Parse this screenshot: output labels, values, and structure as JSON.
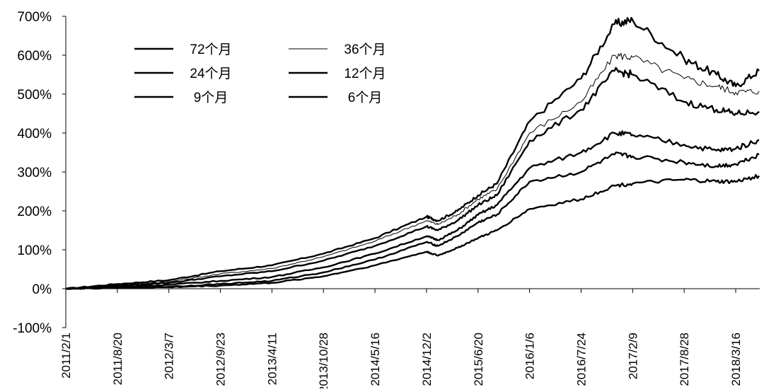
{
  "chart_data": {
    "type": "line",
    "title": "",
    "xlabel": "",
    "ylabel": "",
    "ylim": [
      -100,
      700
    ],
    "y_tick_labels": [
      "700%",
      "600%",
      "500%",
      "400%",
      "300%",
      "200%",
      "100%",
      "0%",
      "-100%"
    ],
    "y_ticks": [
      700,
      600,
      500,
      400,
      300,
      200,
      100,
      0,
      -100
    ],
    "x_tick_labels": [
      "2011/2/1",
      "2011/8/20",
      "2012/3/7",
      "2012/9/23",
      "2013/4/11",
      "2013/10/28",
      "2014/5/16",
      "2014/12/2",
      "2015/6/20",
      "2016/1/6",
      "2016/7/24",
      "2017/2/9",
      "2017/8/28",
      "2018/3/16"
    ],
    "xlim": [
      "2011/2/1",
      "2018/6/30"
    ],
    "grid": false,
    "legend": "top-left, two columns",
    "x": [
      "2011/2/1",
      "2011/8/20",
      "2012/3/7",
      "2012/9/23",
      "2013/4/11",
      "2013/10/28",
      "2014/5/16",
      "2014/12/2",
      "2015/1/15",
      "2015/4/1",
      "2015/6/20",
      "2015/9/1",
      "2016/1/6",
      "2016/7/24",
      "2016/12/1",
      "2017/2/9",
      "2017/8/28",
      "2018/1/1",
      "2018/3/16",
      "2018/6/15"
    ],
    "series": [
      {
        "name": "72个月",
        "values": [
          0,
          12,
          22,
          45,
          60,
          90,
          130,
          185,
          175,
          200,
          240,
          270,
          430,
          540,
          680,
          690,
          590,
          550,
          520,
          560
        ]
      },
      {
        "name": "36个月",
        "values": [
          0,
          10,
          18,
          38,
          52,
          82,
          122,
          175,
          165,
          190,
          230,
          255,
          400,
          480,
          600,
          595,
          540,
          520,
          505,
          508
        ]
      },
      {
        "name": "24个月",
        "values": [
          0,
          8,
          15,
          32,
          45,
          72,
          110,
          160,
          150,
          175,
          215,
          240,
          380,
          460,
          560,
          550,
          480,
          460,
          450,
          455
        ]
      },
      {
        "name": "12个月",
        "values": [
          0,
          5,
          10,
          20,
          30,
          55,
          90,
          135,
          125,
          150,
          190,
          215,
          310,
          350,
          400,
          395,
          370,
          355,
          360,
          382
        ]
      },
      {
        "name": "9个月",
        "values": [
          0,
          3,
          5,
          12,
          20,
          42,
          75,
          120,
          110,
          135,
          170,
          190,
          275,
          300,
          345,
          340,
          325,
          315,
          320,
          345
        ]
      },
      {
        "name": "6个月",
        "values": [
          0,
          2,
          4,
          8,
          15,
          32,
          60,
          95,
          85,
          105,
          130,
          150,
          205,
          230,
          265,
          270,
          280,
          275,
          275,
          290
        ]
      }
    ],
    "series_colors": [
      "#000000",
      "#000000",
      "#000000",
      "#000000",
      "#000000",
      "#000000"
    ],
    "series_widths": [
      "thick",
      "thin",
      "thick",
      "thick",
      "thick",
      "thick"
    ]
  }
}
